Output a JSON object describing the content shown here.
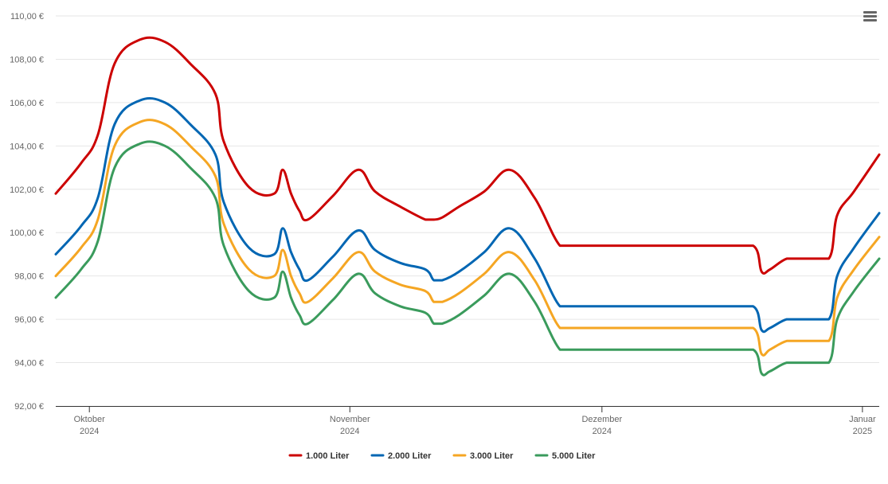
{
  "menu_icon": "hamburger-menu-icon",
  "chart_data": {
    "type": "line",
    "title": "",
    "xlabel": "",
    "ylabel": "",
    "ylim": [
      92,
      110
    ],
    "y_ticks": [
      "92,00 €",
      "94,00 €",
      "96,00 €",
      "98,00 €",
      "100,00 €",
      "102,00 €",
      "104,00 €",
      "106,00 €",
      "108,00 €",
      "110,00 €"
    ],
    "y_tick_values": [
      92,
      94,
      96,
      98,
      100,
      102,
      104,
      106,
      108,
      110
    ],
    "x_ticks": [
      {
        "line1": "Oktober",
        "line2": "2024",
        "date": "2024-10-01"
      },
      {
        "line1": "November",
        "line2": "2024",
        "date": "2024-11-01"
      },
      {
        "line1": "Dezember",
        "line2": "2024",
        "date": "2024-12-01"
      },
      {
        "line1": "Januar",
        "line2": "2025",
        "date": "2025-01-01"
      }
    ],
    "x_range": [
      "2024-09-27",
      "2025-01-03"
    ],
    "grid": true,
    "legend_position": "bottom-center",
    "x": [
      "2024-09-27",
      "2024-09-30",
      "2024-10-02",
      "2024-10-04",
      "2024-10-07",
      "2024-10-10",
      "2024-10-13",
      "2024-10-16",
      "2024-10-17",
      "2024-10-20",
      "2024-10-23",
      "2024-10-24",
      "2024-10-25",
      "2024-10-26",
      "2024-10-27",
      "2024-10-30",
      "2024-11-02",
      "2024-11-04",
      "2024-11-07",
      "2024-11-10",
      "2024-11-11",
      "2024-11-12",
      "2024-11-14",
      "2024-11-17",
      "2024-11-20",
      "2024-11-23",
      "2024-11-26",
      "2024-11-28",
      "2024-11-30",
      "2024-12-05",
      "2024-12-10",
      "2024-12-15",
      "2024-12-19",
      "2024-12-20",
      "2024-12-21",
      "2024-12-23",
      "2024-12-25",
      "2024-12-28",
      "2024-12-29",
      "2024-12-31",
      "2025-01-03"
    ],
    "series": [
      {
        "name": "1.000 Liter",
        "color": "#cc0000",
        "values": [
          101.8,
          103.2,
          104.5,
          107.8,
          108.9,
          108.8,
          107.8,
          106.4,
          104.2,
          102.1,
          101.8,
          102.9,
          101.8,
          101.0,
          100.6,
          101.7,
          102.9,
          101.9,
          101.2,
          100.6,
          100.6,
          100.7,
          101.2,
          101.9,
          102.9,
          101.6,
          99.4,
          99.4,
          99.4,
          99.4,
          99.4,
          99.4,
          99.4,
          98.2,
          98.3,
          98.8,
          98.8,
          98.8,
          100.8,
          101.9,
          103.6
        ]
      },
      {
        "name": "2.000 Liter",
        "color": "#0066b3",
        "values": [
          99.0,
          100.3,
          101.6,
          105.0,
          106.1,
          106.0,
          105.0,
          103.6,
          101.4,
          99.3,
          99.0,
          100.2,
          99.1,
          98.3,
          97.8,
          98.9,
          100.1,
          99.2,
          98.6,
          98.3,
          97.8,
          97.8,
          98.2,
          99.1,
          100.2,
          98.8,
          96.6,
          96.6,
          96.6,
          96.6,
          96.6,
          96.6,
          96.6,
          95.5,
          95.6,
          96.0,
          96.0,
          96.0,
          98.0,
          99.3,
          100.9
        ]
      },
      {
        "name": "3.000 Liter",
        "color": "#f5a623",
        "values": [
          98.0,
          99.3,
          100.6,
          104.0,
          105.1,
          105.0,
          104.0,
          102.6,
          100.4,
          98.3,
          98.0,
          99.2,
          98.0,
          97.2,
          96.8,
          97.9,
          99.1,
          98.2,
          97.6,
          97.3,
          96.8,
          96.8,
          97.2,
          98.1,
          99.1,
          97.8,
          95.6,
          95.6,
          95.6,
          95.6,
          95.6,
          95.6,
          95.6,
          94.4,
          94.6,
          95.0,
          95.0,
          95.0,
          97.0,
          98.3,
          99.8
        ]
      },
      {
        "name": "5.000 Liter",
        "color": "#3a9b5c",
        "values": [
          97.0,
          98.3,
          99.6,
          103.0,
          104.1,
          104.0,
          103.0,
          101.6,
          99.4,
          97.3,
          97.0,
          98.2,
          97.0,
          96.2,
          95.8,
          96.9,
          98.1,
          97.2,
          96.6,
          96.3,
          95.8,
          95.8,
          96.2,
          97.1,
          98.1,
          96.8,
          94.6,
          94.6,
          94.6,
          94.6,
          94.6,
          94.6,
          94.6,
          93.5,
          93.6,
          94.0,
          94.0,
          94.0,
          96.0,
          97.3,
          98.8
        ]
      }
    ]
  }
}
